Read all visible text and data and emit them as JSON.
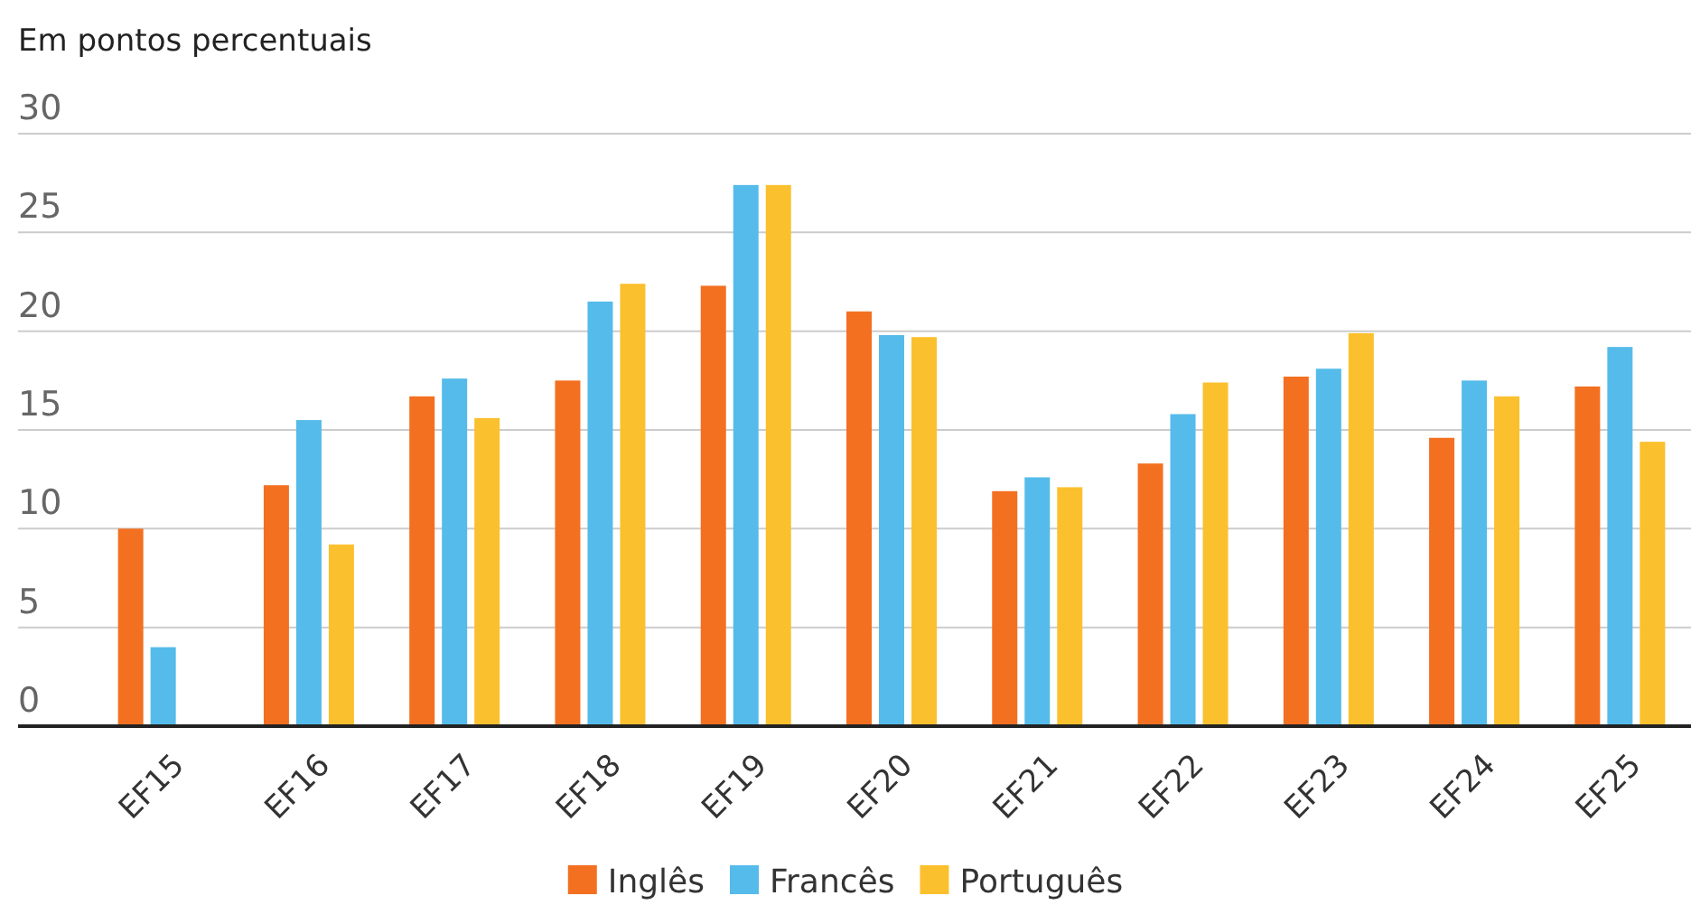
{
  "chart_data": {
    "type": "bar",
    "title": "Em pontos percentuais",
    "categories": [
      "EF15",
      "EF16",
      "EF17",
      "EF18",
      "EF19",
      "EF20",
      "EF21",
      "EF22",
      "EF23",
      "EF24",
      "EF25"
    ],
    "series": [
      {
        "name": "Inglês",
        "color": "#f37021",
        "values": [
          10.0,
          12.2,
          16.7,
          17.5,
          22.3,
          21.0,
          11.9,
          13.3,
          17.7,
          14.6,
          17.2
        ]
      },
      {
        "name": "Francês",
        "color": "#55bbea",
        "values": [
          4.0,
          15.5,
          17.6,
          21.5,
          27.4,
          19.8,
          12.6,
          15.8,
          18.1,
          17.5,
          19.2
        ]
      },
      {
        "name": "Português",
        "color": "#fbc02d",
        "values": [
          null,
          9.2,
          15.6,
          22.4,
          27.4,
          19.7,
          12.1,
          17.4,
          19.9,
          16.7,
          14.4
        ]
      }
    ],
    "ylim": [
      0,
      30
    ],
    "yticks": [
      0,
      5,
      10,
      15,
      20,
      25,
      30
    ],
    "grid": "y",
    "legend": "bottom"
  }
}
